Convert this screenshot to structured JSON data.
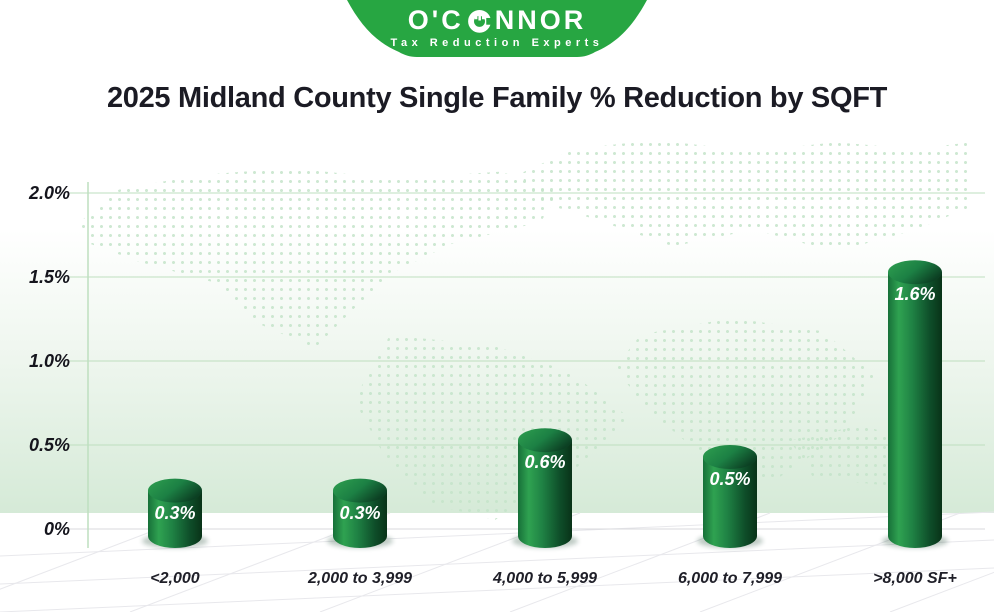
{
  "logo": {
    "name": "O'CONNOR",
    "name_prefix": "O'C",
    "name_suffix": "NNOR",
    "tagline": "Tax Reduction Experts",
    "brand_green": "#27a642"
  },
  "title": "2025 Midland County Single Family % Reduction by SQFT",
  "chart_data": {
    "type": "bar",
    "bar_style": "3d-cylinder",
    "title": "2025 Midland County Single Family % Reduction by SQFT",
    "categories": [
      "<2,000",
      "2,000 to 3,999",
      "4,000 to 5,999",
      "6,000 to 7,999",
      ">8,000 SF+"
    ],
    "values": [
      0.3,
      0.3,
      0.6,
      0.5,
      1.6
    ],
    "value_labels": [
      "0.3%",
      "0.3%",
      "0.6%",
      "0.5%",
      "1.6%"
    ],
    "xlabel": "",
    "ylabel": "",
    "y_ticks": [
      {
        "value": 2.0,
        "label": "2.0%"
      },
      {
        "value": 1.5,
        "label": "1.5%"
      },
      {
        "value": 1.0,
        "label": "1.0%"
      },
      {
        "value": 0.5,
        "label": "0.5%"
      },
      {
        "value": 0.0,
        "label": "0%"
      }
    ],
    "ylim": [
      0,
      2.2
    ],
    "grid": true,
    "legend": "none",
    "colors": {
      "cylinder_light": "#2fa251",
      "cylinder_mid": "#1f8244",
      "cylinder_dark": "#093318",
      "gridline": "#bedfbf",
      "zero_line": "#d8d9dd",
      "bar_label_text": "#ffffff",
      "axis_text": "#15151d",
      "background_tint": "#d5ead7"
    }
  }
}
